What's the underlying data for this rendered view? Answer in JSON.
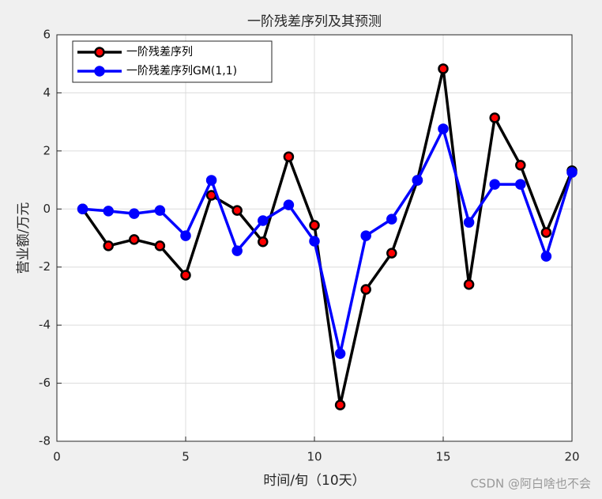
{
  "chart_data": {
    "type": "line",
    "title": "一阶残差序列及其预测",
    "xlabel": "时间/旬（10天）",
    "ylabel": "营业额/万元",
    "watermark": "CSDN @阿白啥也不会",
    "x": [
      1,
      2,
      3,
      4,
      5,
      6,
      7,
      8,
      9,
      10,
      11,
      12,
      13,
      14,
      15,
      16,
      17,
      18,
      19,
      20
    ],
    "series": [
      {
        "name": "一阶残差序列",
        "color": "#000000",
        "marker_fill": "#ff0000",
        "values": [
          0,
          -1.27,
          -1.05,
          -1.27,
          -2.28,
          0.47,
          -0.05,
          -1.13,
          1.8,
          -0.56,
          -6.75,
          -2.77,
          -1.52,
          0.99,
          4.83,
          -2.6,
          3.14,
          1.51,
          -0.81,
          1.32
        ]
      },
      {
        "name": "一阶残差序列GM(1,1)",
        "color": "#0000ff",
        "marker_fill": "#0000ff",
        "values": [
          0,
          -0.07,
          -0.16,
          -0.05,
          -0.92,
          0.99,
          -1.44,
          -0.4,
          0.14,
          -1.11,
          -4.98,
          -0.92,
          -0.35,
          0.99,
          2.76,
          -0.46,
          0.85,
          0.85,
          -1.63,
          1.26
        ]
      }
    ],
    "xlim": [
      0,
      20
    ],
    "xticks": [
      0,
      5,
      10,
      15,
      20
    ],
    "ylim": [
      -8,
      6
    ],
    "yticks": [
      -8,
      -6,
      -4,
      -2,
      0,
      2,
      4,
      6
    ],
    "grid": true,
    "legend": "top-left"
  }
}
